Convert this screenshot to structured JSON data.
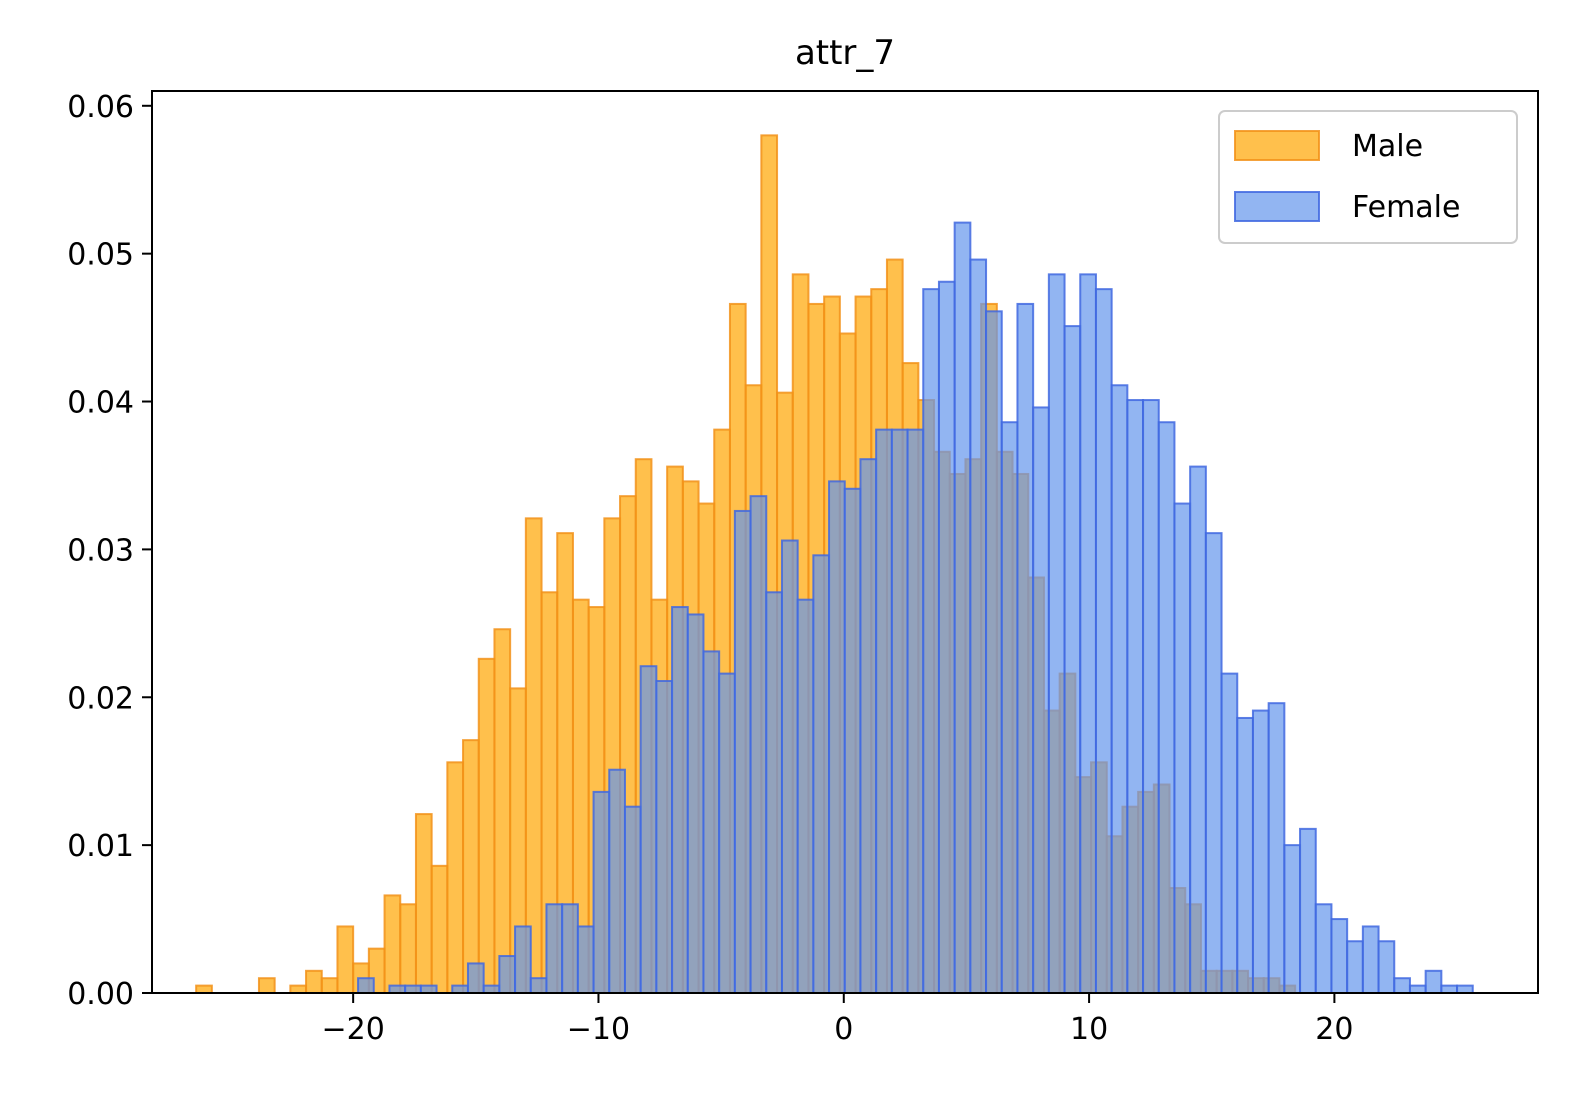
{
  "chart_data": {
    "type": "bar",
    "title": "attr_7",
    "xlabel": "",
    "ylabel": "",
    "xlim": [
      -28.2,
      28.3
    ],
    "ylim": [
      0,
      0.061
    ],
    "bin_width": 0.64,
    "x_ticks": [
      {
        "value": -20,
        "label": "−20"
      },
      {
        "value": -10,
        "label": "−10"
      },
      {
        "value": 0,
        "label": "0"
      },
      {
        "value": 10,
        "label": "10"
      },
      {
        "value": 20,
        "label": "20"
      }
    ],
    "y_ticks": [
      {
        "value": 0,
        "label": "0.00"
      },
      {
        "value": 0.01,
        "label": "0.01"
      },
      {
        "value": 0.02,
        "label": "0.02"
      },
      {
        "value": 0.03,
        "label": "0.03"
      },
      {
        "value": 0.04,
        "label": "0.04"
      },
      {
        "value": 0.05,
        "label": "0.05"
      },
      {
        "value": 0.06,
        "label": "0.06"
      }
    ],
    "legend_position": "top-right",
    "grid": false,
    "series": [
      {
        "name": "Male",
        "fill": "#FFA500",
        "edge": "#F2921A",
        "bin_start": -26.4,
        "values": [
          0.0005,
          0,
          0,
          0,
          0.001,
          0,
          0.0005,
          0.0015,
          0.001,
          0.0045,
          0.002,
          0.003,
          0.0066,
          0.006,
          0.0121,
          0.0086,
          0.0156,
          0.0171,
          0.0226,
          0.0246,
          0.0206,
          0.0321,
          0.0271,
          0.0311,
          0.0266,
          0.0261,
          0.0321,
          0.0336,
          0.0361,
          0.0266,
          0.0356,
          0.0346,
          0.0331,
          0.0381,
          0.0466,
          0.0411,
          0.058,
          0.0406,
          0.0486,
          0.0466,
          0.0471,
          0.0446,
          0.0471,
          0.0476,
          0.0496,
          0.0426,
          0.0401,
          0.0366,
          0.0351,
          0.0361,
          0.0466,
          0.0366,
          0.0351,
          0.0281,
          0.0191,
          0.0216,
          0.0146,
          0.0156,
          0.0106,
          0.0126,
          0.0136,
          0.0141,
          0.0071,
          0.006,
          0.0015,
          0.0015,
          0.0015,
          0.001,
          0.001,
          0.0005
        ]
      },
      {
        "name": "Female",
        "fill": "#6495ED",
        "edge": "#4169E1",
        "bin_start": -19.8,
        "values": [
          0.001,
          0,
          0.0005,
          0.0005,
          0.0005,
          0,
          0.0005,
          0.002,
          0.0005,
          0.0025,
          0.0045,
          0.001,
          0.006,
          0.006,
          0.0045,
          0.0136,
          0.0151,
          0.0126,
          0.0221,
          0.0211,
          0.0261,
          0.0256,
          0.0231,
          0.0216,
          0.0326,
          0.0336,
          0.0271,
          0.0306,
          0.0266,
          0.0296,
          0.0346,
          0.0341,
          0.0361,
          0.0381,
          0.0381,
          0.0381,
          0.0476,
          0.0481,
          0.0521,
          0.0496,
          0.0461,
          0.0386,
          0.0466,
          0.0396,
          0.0486,
          0.0451,
          0.0486,
          0.0476,
          0.0411,
          0.0401,
          0.0401,
          0.0386,
          0.0331,
          0.0356,
          0.0311,
          0.0216,
          0.0186,
          0.0191,
          0.0196,
          0.01,
          0.0111,
          0.006,
          0.005,
          0.0035,
          0.0045,
          0.0035,
          0.001,
          0.0005,
          0.0015,
          0.0005,
          0.0005
        ]
      }
    ]
  }
}
